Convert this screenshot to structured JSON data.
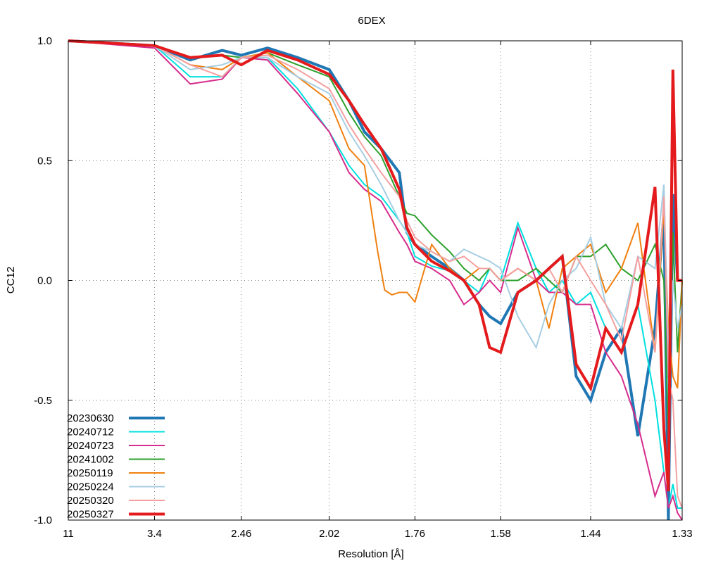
{
  "chart_data": {
    "type": "line",
    "title": "6DEX",
    "xlabel": "Resolution [Å]",
    "ylabel": "CC12",
    "xscale": "inverse-square (1/d²)",
    "xlim": [
      11,
      1.33
    ],
    "ylim": [
      -1.0,
      1.0
    ],
    "x_ticks": [
      11,
      3.4,
      2.46,
      2.02,
      1.76,
      1.58,
      1.44,
      1.33
    ],
    "x_tick_labels": [
      "11",
      "3.4",
      "2.46",
      "2.02",
      "1.76",
      "1.58",
      "1.44",
      "1.33"
    ],
    "y_ticks": [
      -1.0,
      -0.5,
      0.0,
      0.5,
      1.0
    ],
    "y_tick_labels": [
      "-1.0",
      "-0.5",
      "0.0",
      "0.5",
      "1.0"
    ],
    "grid": true,
    "legend_position": "bottom-left",
    "series": [
      {
        "name": "20230630",
        "color": "#1f77b4",
        "width": 4,
        "x": [
          11,
          3.4,
          2.9,
          2.6,
          2.46,
          2.3,
          2.15,
          2.02,
          1.95,
          1.9,
          1.85,
          1.8,
          1.78,
          1.76,
          1.72,
          1.68,
          1.65,
          1.62,
          1.6,
          1.58,
          1.55,
          1.52,
          1.5,
          1.48,
          1.46,
          1.44,
          1.42,
          1.4,
          1.38,
          1.36,
          1.35,
          1.345,
          1.34,
          1.335,
          1.33
        ],
        "y": [
          1.0,
          0.98,
          0.92,
          0.96,
          0.94,
          0.97,
          0.93,
          0.88,
          0.75,
          0.62,
          0.55,
          0.45,
          0.2,
          0.15,
          0.1,
          0.05,
          0.0,
          -0.1,
          -0.15,
          -0.18,
          -0.05,
          0.0,
          0.05,
          0.1,
          -0.4,
          -0.5,
          -0.3,
          -0.2,
          -0.65,
          -0.2,
          0.28,
          -1.0,
          0.36,
          0.0,
          0.0
        ]
      },
      {
        "name": "20240712",
        "color": "#00e0e0",
        "width": 2,
        "x": [
          11,
          3.4,
          2.9,
          2.6,
          2.46,
          2.3,
          2.15,
          2.02,
          1.95,
          1.9,
          1.85,
          1.8,
          1.78,
          1.76,
          1.72,
          1.68,
          1.65,
          1.62,
          1.6,
          1.58,
          1.55,
          1.52,
          1.5,
          1.48,
          1.46,
          1.44,
          1.42,
          1.4,
          1.38,
          1.36,
          1.35,
          1.345,
          1.34,
          1.335,
          1.33
        ],
        "y": [
          1.0,
          0.98,
          0.85,
          0.85,
          0.93,
          0.93,
          0.8,
          0.62,
          0.48,
          0.4,
          0.35,
          0.25,
          0.2,
          0.1,
          0.06,
          0.04,
          0.0,
          -0.05,
          0.05,
          0.0,
          0.24,
          0.05,
          -0.05,
          0.0,
          -0.1,
          -0.05,
          -0.2,
          -0.3,
          -0.1,
          -0.5,
          -0.8,
          -0.95,
          -0.85,
          -0.95,
          -0.95
        ]
      },
      {
        "name": "20240723",
        "color": "#d62d8d",
        "width": 2,
        "x": [
          11,
          3.4,
          2.9,
          2.6,
          2.46,
          2.3,
          2.15,
          2.02,
          1.95,
          1.9,
          1.85,
          1.8,
          1.78,
          1.76,
          1.72,
          1.68,
          1.65,
          1.62,
          1.6,
          1.58,
          1.55,
          1.52,
          1.5,
          1.48,
          1.46,
          1.44,
          1.42,
          1.4,
          1.38,
          1.36,
          1.35,
          1.345,
          1.34,
          1.335,
          1.33
        ],
        "y": [
          1.0,
          0.97,
          0.82,
          0.84,
          0.93,
          0.92,
          0.78,
          0.62,
          0.45,
          0.38,
          0.33,
          0.2,
          0.15,
          0.08,
          0.05,
          0.0,
          -0.1,
          -0.05,
          0.0,
          -0.05,
          0.22,
          0.0,
          -0.05,
          -0.05,
          -0.1,
          -0.1,
          -0.3,
          -0.4,
          -0.6,
          -0.9,
          -0.8,
          -0.95,
          -0.9,
          -0.97,
          -1.0
        ]
      },
      {
        "name": "20241002",
        "color": "#2ca02c",
        "width": 2,
        "x": [
          11,
          3.4,
          2.9,
          2.6,
          2.46,
          2.3,
          2.15,
          2.02,
          1.95,
          1.9,
          1.85,
          1.8,
          1.78,
          1.76,
          1.72,
          1.68,
          1.65,
          1.62,
          1.6,
          1.58,
          1.55,
          1.52,
          1.5,
          1.48,
          1.46,
          1.44,
          1.42,
          1.4,
          1.38,
          1.36,
          1.35,
          1.345,
          1.34,
          1.335,
          1.33
        ],
        "y": [
          1.0,
          0.98,
          0.93,
          0.94,
          0.93,
          0.95,
          0.9,
          0.85,
          0.7,
          0.6,
          0.52,
          0.35,
          0.28,
          0.27,
          0.19,
          0.12,
          0.05,
          0.0,
          0.05,
          0.0,
          0.0,
          0.05,
          0.0,
          -0.05,
          0.1,
          0.1,
          0.15,
          0.05,
          0.0,
          0.15,
          0.0,
          -0.67,
          0.2,
          -0.3,
          0.0
        ]
      },
      {
        "name": "20250119",
        "color": "#f08010",
        "width": 2,
        "x": [
          11,
          3.4,
          2.9,
          2.6,
          2.46,
          2.3,
          2.15,
          2.02,
          1.95,
          1.9,
          1.86,
          1.84,
          1.82,
          1.8,
          1.78,
          1.76,
          1.72,
          1.68,
          1.65,
          1.62,
          1.6,
          1.58,
          1.55,
          1.52,
          1.5,
          1.48,
          1.46,
          1.44,
          1.42,
          1.4,
          1.38,
          1.36,
          1.35,
          1.345,
          1.34,
          1.335,
          1.33
        ],
        "y": [
          1.0,
          0.98,
          0.9,
          0.88,
          0.93,
          0.95,
          0.85,
          0.75,
          0.55,
          0.48,
          0.12,
          -0.04,
          -0.06,
          -0.05,
          -0.05,
          -0.09,
          0.15,
          0.05,
          0.0,
          0.05,
          0.05,
          0.0,
          0.05,
          0.0,
          -0.2,
          0.05,
          0.1,
          0.15,
          -0.05,
          0.05,
          0.24,
          -0.3,
          0.3,
          -0.2,
          -0.4,
          -0.45,
          0.0
        ]
      },
      {
        "name": "20250224",
        "color": "#a6cee3",
        "width": 2,
        "x": [
          11,
          3.4,
          2.9,
          2.6,
          2.46,
          2.3,
          2.15,
          2.02,
          1.95,
          1.9,
          1.85,
          1.8,
          1.78,
          1.76,
          1.72,
          1.68,
          1.65,
          1.62,
          1.6,
          1.58,
          1.55,
          1.52,
          1.5,
          1.48,
          1.46,
          1.44,
          1.42,
          1.4,
          1.38,
          1.36,
          1.35,
          1.345,
          1.34,
          1.335,
          1.33
        ],
        "y": [
          1.0,
          0.98,
          0.88,
          0.9,
          0.93,
          0.93,
          0.85,
          0.78,
          0.62,
          0.52,
          0.4,
          0.25,
          0.2,
          0.15,
          0.12,
          0.08,
          0.13,
          0.1,
          0.08,
          0.05,
          -0.15,
          -0.28,
          -0.1,
          0.0,
          0.05,
          0.18,
          -0.1,
          -0.2,
          0.1,
          0.05,
          0.4,
          -0.3,
          0.0,
          -0.2,
          -0.1
        ]
      },
      {
        "name": "20250320",
        "color": "#f4a0a0",
        "width": 2,
        "x": [
          11,
          3.4,
          2.9,
          2.6,
          2.46,
          2.3,
          2.15,
          2.02,
          1.95,
          1.9,
          1.85,
          1.8,
          1.78,
          1.76,
          1.72,
          1.68,
          1.65,
          1.62,
          1.6,
          1.58,
          1.55,
          1.52,
          1.5,
          1.48,
          1.46,
          1.44,
          1.42,
          1.4,
          1.38,
          1.36,
          1.35,
          1.345,
          1.34,
          1.335,
          1.33
        ],
        "y": [
          1.0,
          0.98,
          0.9,
          0.85,
          0.93,
          0.94,
          0.88,
          0.8,
          0.65,
          0.55,
          0.45,
          0.35,
          0.25,
          0.18,
          0.12,
          0.08,
          0.1,
          0.05,
          0.05,
          0.0,
          0.05,
          0.0,
          0.05,
          -0.05,
          0.1,
          0.0,
          -0.1,
          -0.25,
          0.1,
          -0.3,
          0.35,
          -0.4,
          -0.5,
          -0.9,
          -0.95
        ]
      },
      {
        "name": "20250327",
        "color": "#e41a1c",
        "width": 4,
        "x": [
          11,
          3.4,
          2.9,
          2.6,
          2.46,
          2.3,
          2.15,
          2.02,
          1.95,
          1.9,
          1.85,
          1.8,
          1.78,
          1.76,
          1.72,
          1.68,
          1.65,
          1.62,
          1.6,
          1.58,
          1.55,
          1.52,
          1.5,
          1.48,
          1.46,
          1.44,
          1.42,
          1.4,
          1.38,
          1.36,
          1.35,
          1.345,
          1.34,
          1.335,
          1.33
        ],
        "y": [
          1.0,
          0.98,
          0.93,
          0.94,
          0.9,
          0.96,
          0.92,
          0.86,
          0.75,
          0.65,
          0.55,
          0.38,
          0.22,
          0.15,
          0.08,
          0.04,
          0.0,
          -0.1,
          -0.28,
          -0.3,
          -0.05,
          0.0,
          0.05,
          0.1,
          -0.35,
          -0.45,
          -0.2,
          -0.3,
          -0.1,
          0.39,
          -0.62,
          -0.88,
          0.88,
          0.0,
          0.0
        ]
      }
    ]
  }
}
